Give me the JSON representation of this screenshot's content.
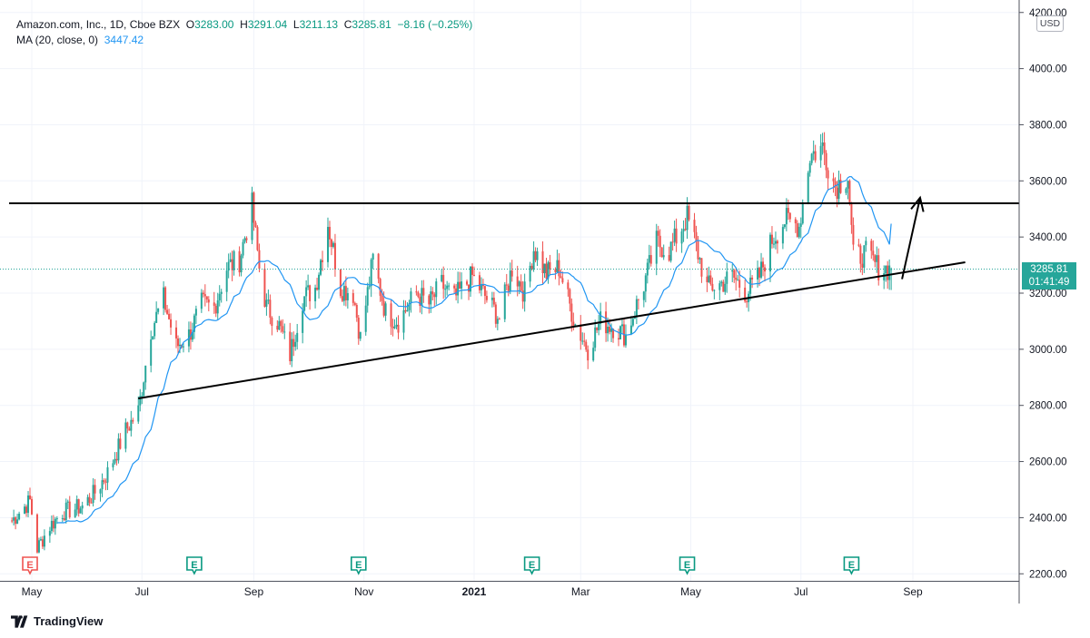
{
  "legend": {
    "symbol": "Amazon.com, Inc., 1D, Cboe BZX",
    "o_label": "O",
    "o_value": "3283.00",
    "h_label": "H",
    "h_value": "3291.04",
    "l_label": "L",
    "l_value": "3211.13",
    "c_label": "C",
    "c_value": "3285.81",
    "change": "−8.16 (−0.25%)",
    "ma_label": "MA (20, close, 0)",
    "ma_value": "3447.42"
  },
  "currency": "USD",
  "last_price": {
    "price": "3285.81",
    "countdown": "01:41:49"
  },
  "brand": "TradingView",
  "colors": {
    "up": "#26a69a",
    "down": "#ef5350",
    "ma": "#2196f3",
    "earnings_past": "#ef5350",
    "earnings": "#089981",
    "last_price": "#26a69a",
    "drawing": "#000000"
  },
  "chart_data": {
    "type": "candlestick",
    "title": "Amazon.com, Inc., 1D, Cboe BZX",
    "ylim": [
      2180,
      4200
    ],
    "y_ticks": [
      "2200.00",
      "2400.00",
      "2600.00",
      "2800.00",
      "3000.00",
      "3200.00",
      "3400.00",
      "3600.00",
      "3800.00",
      "4000.00",
      "4200.00"
    ],
    "y_tick_values": [
      2200,
      2400,
      2600,
      2800,
      3000,
      3200,
      3400,
      3600,
      3800,
      4000,
      4200
    ],
    "x_ticks": [
      {
        "label": "May",
        "date": "2020-05-01"
      },
      {
        "label": "Jul",
        "date": "2020-07-01"
      },
      {
        "label": "Sep",
        "date": "2020-09-01"
      },
      {
        "label": "Nov",
        "date": "2020-11-01"
      },
      {
        "label": "2021",
        "date": "2021-01-01",
        "bold": true
      },
      {
        "label": "Mar",
        "date": "2021-03-01"
      },
      {
        "label": "May",
        "date": "2021-05-01"
      },
      {
        "label": "Jul",
        "date": "2021-07-01"
      },
      {
        "label": "Sep",
        "date": "2021-09-01"
      }
    ],
    "price_path": [
      [
        "2020-04-20",
        2390
      ],
      [
        "2020-04-30",
        2460
      ],
      [
        "2020-05-04",
        2290
      ],
      [
        "2020-05-11",
        2370
      ],
      [
        "2020-05-18",
        2420
      ],
      [
        "2020-05-29",
        2440
      ],
      [
        "2020-06-05",
        2490
      ],
      [
        "2020-06-12",
        2560
      ],
      [
        "2020-06-22",
        2710
      ],
      [
        "2020-06-29",
        2780
      ],
      [
        "2020-07-06",
        3070
      ],
      [
        "2020-07-13",
        3180
      ],
      [
        "2020-07-20",
        3010
      ],
      [
        "2020-07-27",
        3050
      ],
      [
        "2020-08-03",
        3160
      ],
      [
        "2020-08-10",
        3150
      ],
      [
        "2020-08-17",
        3290
      ],
      [
        "2020-08-24",
        3320
      ],
      [
        "2020-08-31",
        3510
      ],
      [
        "2020-09-04",
        3290
      ],
      [
        "2020-09-08",
        3150
      ],
      [
        "2020-09-14",
        3100
      ],
      [
        "2020-09-21",
        2980
      ],
      [
        "2020-09-28",
        3180
      ],
      [
        "2020-10-05",
        3220
      ],
      [
        "2020-10-12",
        3450
      ],
      [
        "2020-10-19",
        3220
      ],
      [
        "2020-10-26",
        3200
      ],
      [
        "2020-10-30",
        3040
      ],
      [
        "2020-11-06",
        3320
      ],
      [
        "2020-11-13",
        3130
      ],
      [
        "2020-11-20",
        3100
      ],
      [
        "2020-11-30",
        3200
      ],
      [
        "2020-12-07",
        3160
      ],
      [
        "2020-12-14",
        3230
      ],
      [
        "2020-12-21",
        3180
      ],
      [
        "2020-12-31",
        3260
      ],
      [
        "2021-01-08",
        3180
      ],
      [
        "2021-01-15",
        3110
      ],
      [
        "2021-01-22",
        3290
      ],
      [
        "2021-01-29",
        3200
      ],
      [
        "2021-02-03",
        3360
      ],
      [
        "2021-02-10",
        3270
      ],
      [
        "2021-02-17",
        3290
      ],
      [
        "2021-02-26",
        3090
      ],
      [
        "2021-03-05",
        3000
      ],
      [
        "2021-03-12",
        3100
      ],
      [
        "2021-03-19",
        3080
      ],
      [
        "2021-03-26",
        3050
      ],
      [
        "2021-04-05",
        3230
      ],
      [
        "2021-04-12",
        3380
      ],
      [
        "2021-04-19",
        3350
      ],
      [
        "2021-04-29",
        3470
      ],
      [
        "2021-05-03",
        3390
      ],
      [
        "2021-05-10",
        3220
      ],
      [
        "2021-05-17",
        3230
      ],
      [
        "2021-05-24",
        3260
      ],
      [
        "2021-06-01",
        3200
      ],
      [
        "2021-06-08",
        3260
      ],
      [
        "2021-06-15",
        3390
      ],
      [
        "2021-06-22",
        3460
      ],
      [
        "2021-06-30",
        3440
      ],
      [
        "2021-07-06",
        3690
      ],
      [
        "2021-07-13",
        3720
      ],
      [
        "2021-07-20",
        3580
      ],
      [
        "2021-07-27",
        3620
      ],
      [
        "2021-07-30",
        3330
      ],
      [
        "2021-08-06",
        3340
      ],
      [
        "2021-08-13",
        3290
      ],
      [
        "2021-08-20",
        3285.81
      ]
    ],
    "ma_label": "MA (20, close, 0)",
    "ma_last": 3447.42,
    "last_price": 3285.81,
    "earnings_markers": [
      {
        "date": "2020-04-30",
        "label": "E",
        "past": true
      },
      {
        "date": "2020-07-30",
        "label": "E"
      },
      {
        "date": "2020-10-29",
        "label": "E"
      },
      {
        "date": "2021-02-02",
        "label": "E"
      },
      {
        "date": "2021-04-29",
        "label": "E"
      },
      {
        "date": "2021-07-29",
        "label": "E"
      }
    ],
    "drawings": {
      "resistance_line": {
        "price": 3520
      },
      "rising_trendline": {
        "from": [
          "2020-06-29",
          2825
        ],
        "to": [
          "2021-09-30",
          3310
        ]
      },
      "arrow": {
        "from": [
          "2021-08-26",
          3250
        ],
        "to": [
          "2021-09-05",
          3540
        ]
      }
    }
  }
}
